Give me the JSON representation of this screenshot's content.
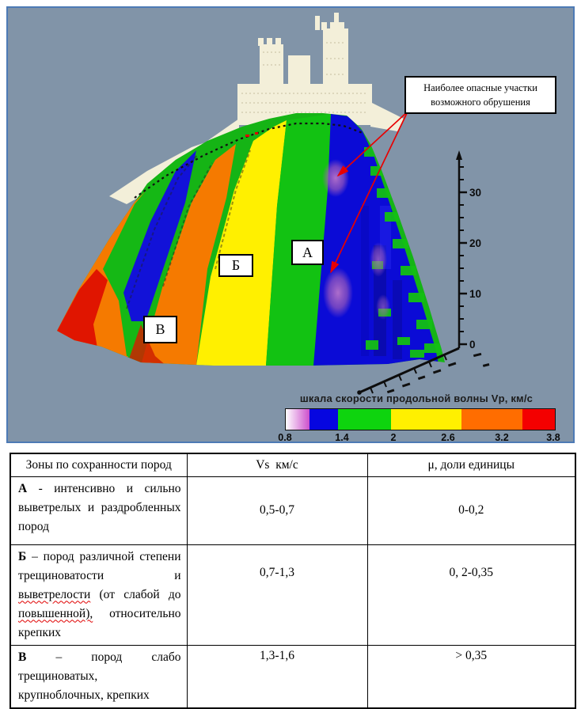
{
  "figure": {
    "background_color": "#8194a8",
    "border_color": "#4d7ab5",
    "callout": {
      "line1": "Наиболее опасные участки",
      "line2": "возможного обрушения"
    },
    "zone_labels": {
      "a": "А",
      "b": "Б",
      "v": "В"
    },
    "elevation_axis": {
      "ticks": [
        "0",
        "10",
        "20",
        "30"
      ]
    },
    "colorbar": {
      "title": "шкала скорости продольной волны Vp, км/с",
      "tick_labels": [
        "0.8",
        "1.4",
        "2",
        "2.6",
        "3.2",
        "3.8"
      ],
      "segments": [
        {
          "name": "magenta-gradient",
          "colors": [
            "#ffffff",
            "#cc4fcc"
          ],
          "width_pct": 8.8
        },
        {
          "name": "blue",
          "colors": [
            "#0606e0"
          ],
          "width_pct": 10.5
        },
        {
          "name": "green",
          "colors": [
            "#0ed40e"
          ],
          "width_pct": 19.9
        },
        {
          "name": "yellow",
          "colors": [
            "#fff000"
          ],
          "width_pct": 26.0
        },
        {
          "name": "orange",
          "colors": [
            "#ff6d00"
          ],
          "width_pct": 22.8
        },
        {
          "name": "red",
          "colors": [
            "#f40000"
          ],
          "width_pct": 12.0
        }
      ]
    }
  },
  "table": {
    "headers": [
      "Зоны по сохранности пород",
      "Vs  км/с",
      "μ, доли единицы"
    ],
    "rows": [
      {
        "letter": "А",
        "line1_rest": " - интенсивно и сильно",
        "line2": "выветрелых и раздробленных",
        "line3": "пород",
        "vs": "0,5-0,7",
        "mu": "0-0,2"
      },
      {
        "letter": "Б",
        "line1_rest": " – пород различной степени",
        "line2": "трещиноватости и",
        "line3_wavy": "выветрелости",
        "line3_rest": " (от слабой до",
        "line4_wavy": "повышенной),",
        "line4_rest": " относительно",
        "line5": "крепких",
        "vs": "0,7-1,3",
        "mu": "0, 2-0,35"
      },
      {
        "letter": "В",
        "line1_rest": " – пород слабо",
        "line2": "трещиноватых,",
        "line3": "крупноблочных, крепких",
        "vs": "1,3-1,6",
        "mu": "> 0,35"
      }
    ]
  }
}
